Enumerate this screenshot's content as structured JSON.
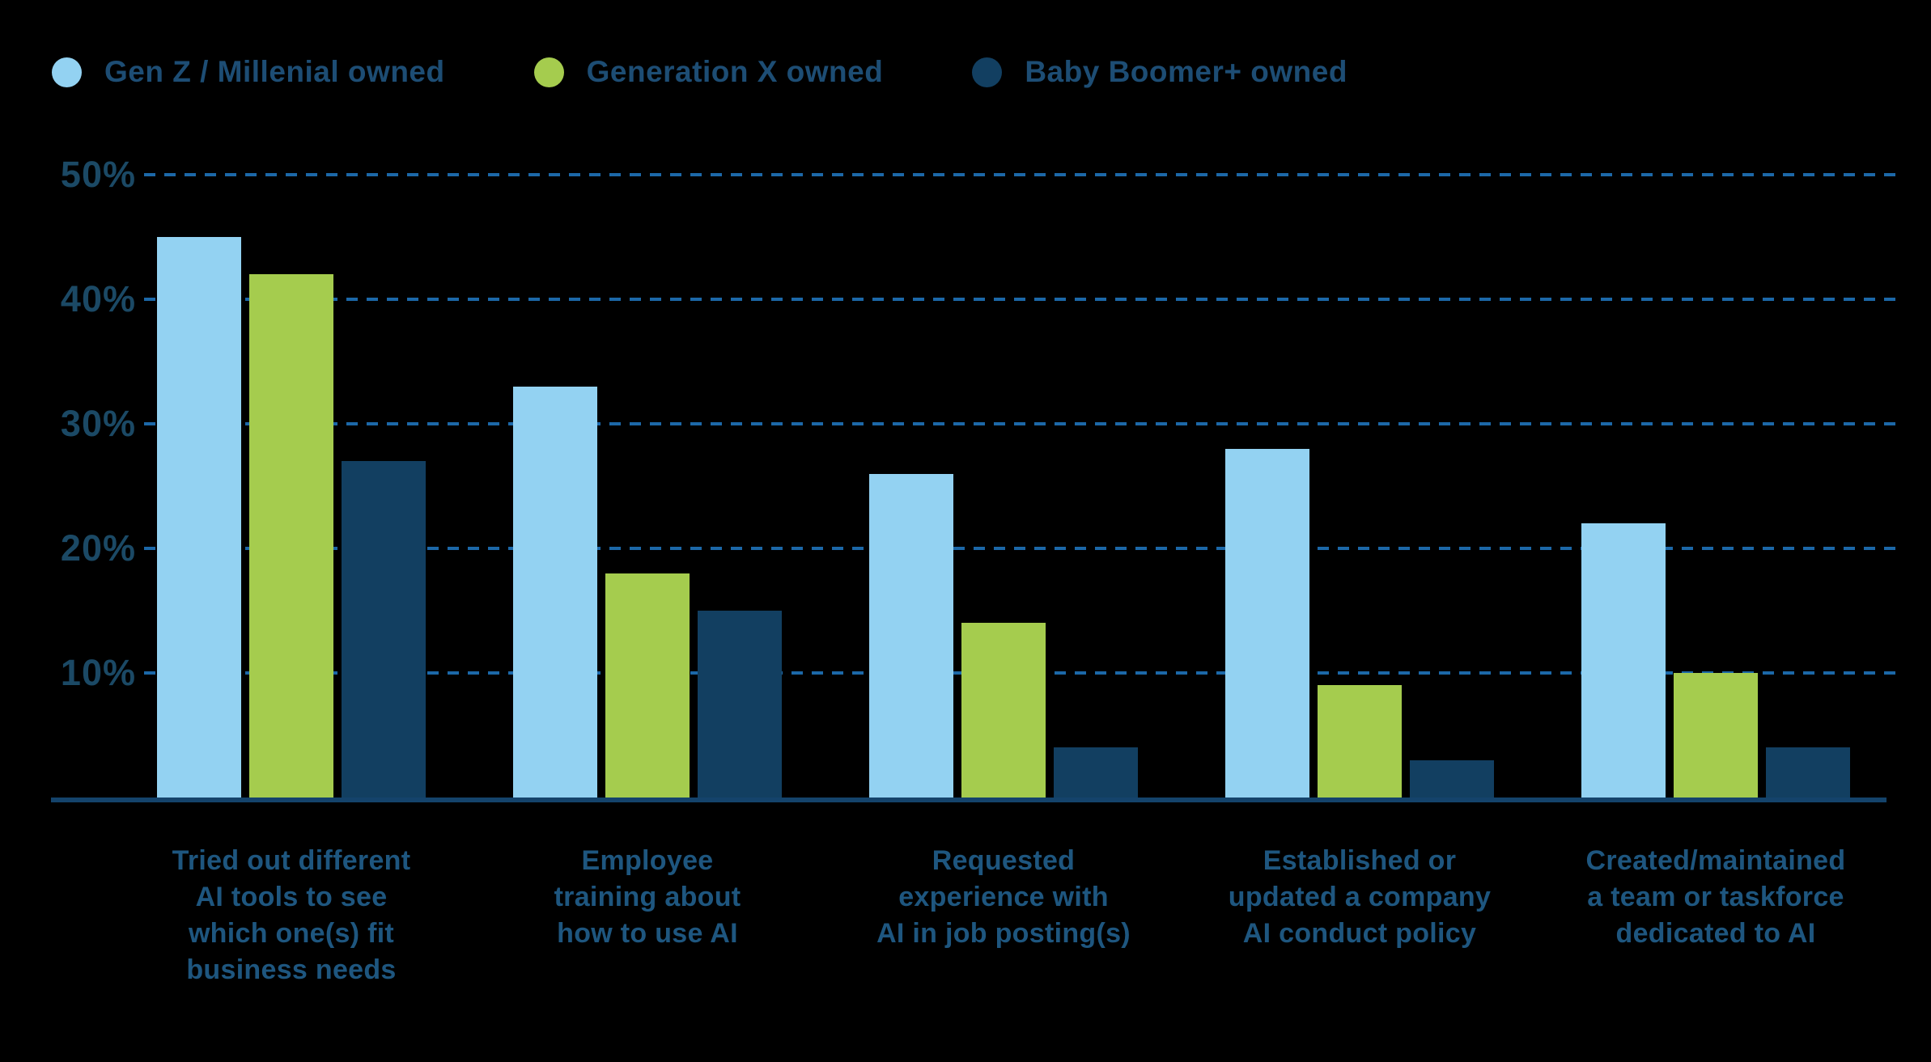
{
  "background_color": "#000000",
  "legend": {
    "text_color": "#1d4d74",
    "items": [
      {
        "label": "Gen Z / Millenial owned",
        "color": "#93d2f2"
      },
      {
        "label": "Generation X owned",
        "color": "#a5cc4e"
      },
      {
        "label": "Baby Boomer+ owned",
        "color": "#123f61"
      }
    ]
  },
  "axis": {
    "y_ticks": [
      "10%",
      "20%",
      "30%",
      "40%",
      "50%"
    ],
    "tick_color": "#1b4965",
    "gridline_color": "#1c68a8",
    "baseline_color": "#14436b",
    "category_label_color": "#1e567f"
  },
  "chart_data": {
    "type": "bar",
    "title": "",
    "xlabel": "",
    "ylabel": "",
    "ylim": [
      0,
      50
    ],
    "y_tick_values": [
      10,
      20,
      30,
      40,
      50
    ],
    "grid": "horizontal-dashed",
    "legend_position": "top-left",
    "categories": [
      "Tried out different AI tools to see which one(s) fit business needs",
      "Employee training about how to use AI",
      "Requested experience with AI in job posting(s)",
      "Established or updated a company AI conduct policy",
      "Created/maintained a team or taskforce dedicated to AI"
    ],
    "categories_wrapped": [
      "Tried out different\nAI tools to see\nwhich one(s) fit\nbusiness needs",
      "Employee\ntraining about\nhow to use AI",
      "Requested\nexperience with\nAI in job posting(s)",
      "Established or\nupdated a company\nAI conduct policy",
      "Created/maintained\na team or taskforce\ndedicated to AI"
    ],
    "series": [
      {
        "name": "Gen Z / Millenial owned",
        "color": "#93d2f2",
        "values": [
          45,
          33,
          26,
          28,
          22
        ]
      },
      {
        "name": "Generation X owned",
        "color": "#a5cc4e",
        "values": [
          42,
          18,
          14,
          9,
          10
        ]
      },
      {
        "name": "Baby Boomer+ owned",
        "color": "#123f61",
        "values": [
          27,
          15,
          4,
          3,
          4
        ]
      }
    ]
  }
}
